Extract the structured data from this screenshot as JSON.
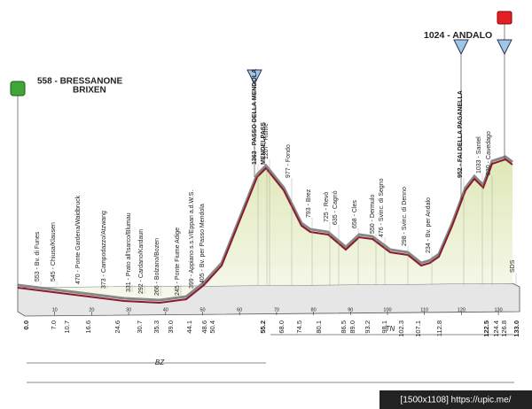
{
  "start": {
    "title": "558 - BRESSANONE",
    "subtitle": "BRIXEN"
  },
  "finish": {
    "title": "1024 - ANDALO"
  },
  "places": [
    "553 - Bv. di Funes",
    "545 - Chiusa/Klausen",
    "470 - Ponte Gardena/Waidbruck",
    "373 - Campodazzo/Atzwang",
    "331 - Prato all'Isarco/Blumau",
    "292 - Cardano/Kardaun",
    "266 - Bolzano/Bozen",
    "245 - Ponte Fiume Adige",
    "399 - Appiano s.s.V/Eppan a.d.W.S.",
    "405 - Bv. per Passo Mendola",
    "1363 - PASSO DELLA MENDOLA",
    "MENDELPASS",
    "1207 - Ruffrè",
    "977 - Fondo",
    "793 - Brez",
    "725 - Revò",
    "635 - Cagnò",
    "658 - Cles",
    "550 - Dermulo",
    "476 - Svinc. di Segno",
    "298 - Svinc. di Denno",
    "234 - Bv. per Andalo",
    "952 - FAI DELLA PAGANELLA",
    "1033 - Santel",
    "830 - Cavedago",
    "SDS"
  ],
  "km_labels": [
    "0.0",
    "7.0",
    "10.7",
    "16.6",
    "24.6",
    "30.7",
    "35.3",
    "39.0",
    "44.1",
    "48.6",
    "50.4",
    "55.2",
    "68.0",
    "74.5",
    "80.1",
    "86.5",
    "89.0",
    "93.2",
    "98.1",
    "102.3",
    "107.1",
    "112.8",
    "122.5",
    "124.4",
    "126.8",
    "133.0"
  ],
  "scale_ticks": [
    "10",
    "20",
    "30",
    "40",
    "50",
    "60",
    "70",
    "80",
    "90",
    "100",
    "110",
    "120",
    "130"
  ],
  "regions": [
    "BZ",
    "TN"
  ],
  "watermark": "[1500x1108] https://upic.me/"
}
